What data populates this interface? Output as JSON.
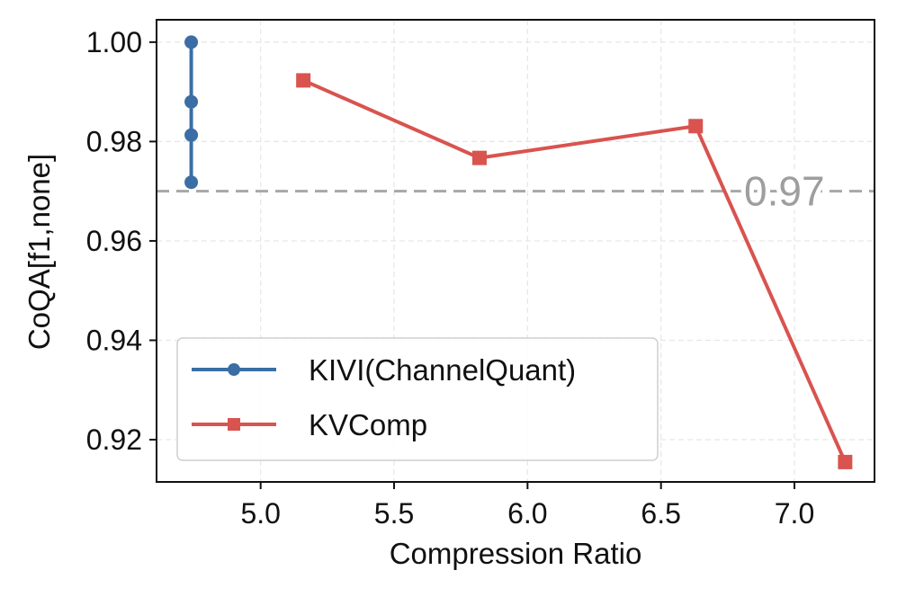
{
  "chart_data": {
    "type": "line",
    "title": "",
    "xlabel": "Compression Ratio",
    "ylabel": "CoQA[f1,none]",
    "xlim": [
      4.61,
      7.3
    ],
    "ylim": [
      0.9115,
      1.0045
    ],
    "xticks": [
      5.0,
      5.5,
      6.0,
      6.5,
      7.0
    ],
    "xtick_labels": [
      "5.0",
      "5.5",
      "6.0",
      "6.5",
      "7.0"
    ],
    "yticks": [
      0.92,
      0.94,
      0.96,
      0.98,
      1.0
    ],
    "ytick_labels": [
      "0.92",
      "0.94",
      "0.96",
      "0.98",
      "1.00"
    ],
    "grid": true,
    "legend_position": "bottom-left",
    "series": [
      {
        "name": "KIVI(ChannelQuant)",
        "color": "#3a6ea5",
        "marker": "circle",
        "x": [
          4.74,
          4.74,
          4.74,
          4.74
        ],
        "y": [
          1.0,
          0.988,
          0.9813,
          0.9718
        ]
      },
      {
        "name": "KVComp",
        "color": "#d9534f",
        "marker": "square",
        "x": [
          5.16,
          5.82,
          6.63,
          7.19
        ],
        "y": [
          0.9923,
          0.9767,
          0.9831,
          0.9155
        ]
      }
    ],
    "reference_line": {
      "y": 0.97,
      "label": "0.97",
      "color": "#a8a8a8",
      "style": "dashed"
    }
  }
}
